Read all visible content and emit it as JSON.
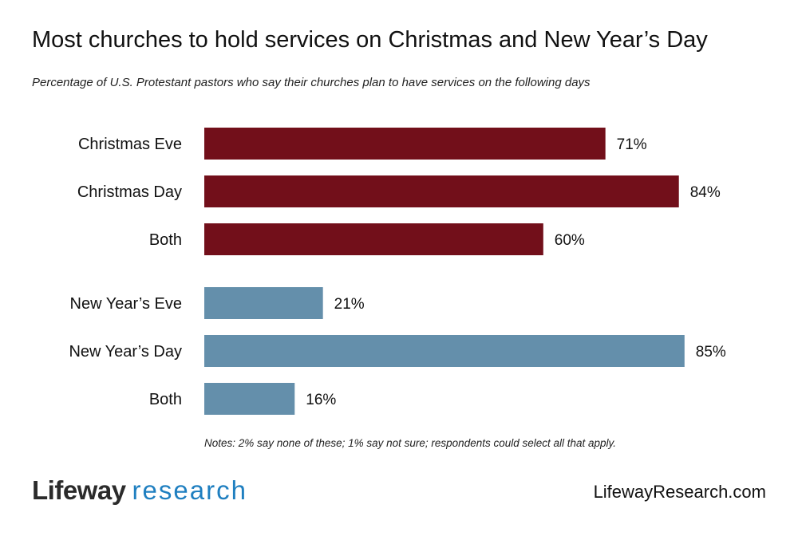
{
  "chart_data": {
    "type": "bar",
    "orientation": "horizontal",
    "title": "Most churches to hold services on Christmas and New Year’s Day",
    "subtitle": "Percentage of U.S. Protestant pastors who say their churches plan to have services on the following days",
    "categories": [
      "Christmas Eve",
      "Christmas Day",
      "Both",
      "New Year’s Eve",
      "New Year’s Day",
      "Both"
    ],
    "values": [
      71,
      84,
      60,
      21,
      85,
      16
    ],
    "data_labels": [
      "71%",
      "84%",
      "60%",
      "21%",
      "85%",
      "16%"
    ],
    "groups": [
      {
        "indices": [
          0,
          1,
          2
        ],
        "color": "#720f1a"
      },
      {
        "indices": [
          3,
          4,
          5
        ],
        "color": "#648fab"
      }
    ],
    "xlim": [
      0,
      100
    ],
    "grid": false,
    "axes_visible": false,
    "note": "Notes: 2% say none of these; 1% say not sure; respondents could select all that apply."
  },
  "footer": {
    "logo_part1": "Lifeway",
    "logo_part2": "research",
    "url": "LifewayResearch.com"
  }
}
